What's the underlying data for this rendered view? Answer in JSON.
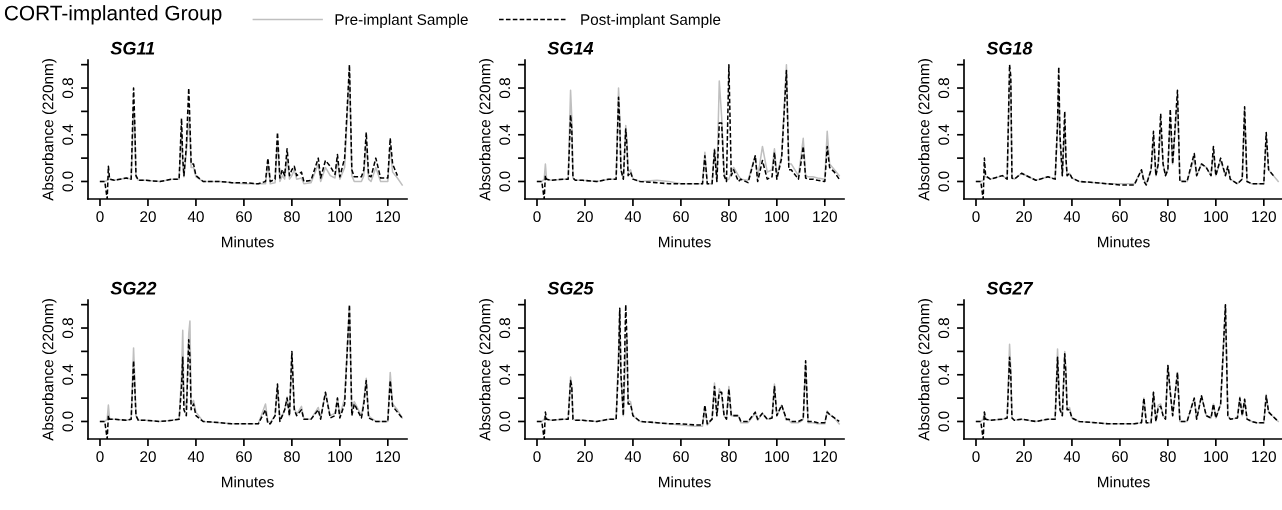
{
  "chart_data": [
    {
      "type": "line",
      "title": "SG11",
      "xlabel": "Minutes",
      "ylabel": "Absorbance (220nm)",
      "annotations": [
        "CORT-implanted Group"
      ],
      "legend": "top",
      "x": [
        0,
        2,
        3,
        3.5,
        4,
        6,
        11,
        13,
        14,
        14.5,
        15,
        16,
        19,
        25,
        30,
        33,
        34,
        34.5,
        35,
        36,
        37,
        37.5,
        38,
        39,
        40,
        43,
        50,
        55,
        60,
        66,
        69,
        70,
        71,
        73,
        74,
        75,
        76,
        77,
        78,
        79,
        80,
        81,
        82,
        84,
        85,
        88,
        91,
        92,
        94,
        96,
        98,
        99,
        100,
        102,
        104,
        105,
        106,
        109,
        110,
        111,
        112,
        113,
        115,
        117,
        120,
        121,
        122,
        124,
        126
      ],
      "series": [
        {
          "name": "Pre-implant Sample",
          "color": "#bfbfbf",
          "line_style": "solid",
          "values": [
            0,
            0,
            0.01,
            0.02,
            0.02,
            0.01,
            0.03,
            0.02,
            0.6,
            0.45,
            0.04,
            0.01,
            0.01,
            0,
            0.02,
            0.02,
            0.45,
            0.15,
            0.04,
            0.25,
            0.55,
            0.4,
            0.12,
            0.12,
            0.04,
            0,
            0,
            -0.01,
            -0.02,
            -0.02,
            -0.02,
            0.15,
            -0.02,
            -0.01,
            0.35,
            0,
            0.05,
            0.02,
            0.2,
            0.02,
            0.05,
            0.1,
            0.02,
            0.03,
            -0.02,
            -0.01,
            0.15,
            0,
            0.12,
            0.05,
            0.03,
            0.18,
            0.02,
            0.12,
            0.95,
            0.05,
            0,
            0,
            0.05,
            0.35,
            0.02,
            0,
            0.12,
            0,
            0,
            0.3,
            0.08,
            0.03,
            -0.03
          ]
        },
        {
          "name": "Post-implant Sample",
          "color": "#000000",
          "line_style": "dashed",
          "values": [
            0,
            0,
            -0.15,
            0.13,
            0.02,
            0.01,
            0.03,
            0.02,
            0.8,
            0.5,
            0.05,
            0.01,
            0.01,
            0,
            0.02,
            0.02,
            0.54,
            0.2,
            0.05,
            0.3,
            0.8,
            0.5,
            0.15,
            0.15,
            0.05,
            0,
            0,
            -0.01,
            -0.01,
            -0.02,
            0,
            0.2,
            0,
            0.02,
            0.42,
            0.03,
            0.1,
            0.05,
            0.28,
            0.05,
            0.1,
            0.13,
            0.05,
            0.08,
            0,
            0.01,
            0.2,
            0.03,
            0.18,
            0.13,
            0.06,
            0.23,
            0.04,
            0.2,
            1.0,
            0.1,
            0.04,
            0.04,
            0.1,
            0.42,
            0.05,
            0.04,
            0.2,
            0.03,
            0.03,
            0.37,
            0.15,
            0.05,
            null
          ]
        }
      ],
      "xlim": [
        -5,
        128
      ],
      "ylim": [
        -0.15,
        1.04
      ],
      "xticks": [
        0,
        20,
        40,
        60,
        80,
        100,
        120
      ],
      "yticks": [
        {
          "value": 0,
          "label": "0.0"
        },
        {
          "value": 0.2,
          "label": null
        },
        {
          "value": 0.4,
          "label": "0.4"
        },
        {
          "value": 0.6,
          "label": null
        },
        {
          "value": 0.8,
          "label": "0.8"
        },
        {
          "value": 1.0,
          "label": null
        }
      ]
    },
    {
      "type": "line",
      "title": "SG14",
      "xlabel": "Minutes",
      "ylabel": "Absorbance (220nm)",
      "x": [
        0,
        2,
        3,
        3.5,
        4,
        6,
        11,
        13,
        14,
        14.5,
        15,
        16,
        19,
        25,
        30,
        33,
        34,
        34.5,
        35,
        36,
        37,
        37.5,
        38,
        39,
        40,
        43,
        50,
        55,
        60,
        66,
        69,
        70,
        71,
        73,
        74,
        75,
        76,
        77,
        78,
        79,
        80,
        81,
        82,
        84,
        85,
        88,
        91,
        92,
        94,
        96,
        98,
        99,
        100,
        102,
        104,
        105,
        106,
        109,
        110,
        111,
        112,
        113,
        115,
        117,
        120,
        121,
        122,
        124,
        126
      ],
      "series": [
        {
          "color": "#bfbfbf",
          "line_style": "solid",
          "values": [
            0,
            0,
            0.02,
            0.15,
            0.02,
            0.01,
            0.02,
            0.02,
            0.78,
            0.55,
            0.03,
            0.01,
            0.01,
            0,
            0.02,
            0.02,
            0.8,
            0.55,
            0.1,
            0.02,
            0.48,
            0.35,
            0.08,
            0.1,
            0.02,
            0,
            0.01,
            0,
            -0.02,
            -0.02,
            -0.02,
            0.25,
            -0.02,
            -0.02,
            0.28,
            0,
            0.86,
            0.55,
            0.08,
            0.01,
            0.02,
            0.08,
            0.12,
            0.05,
            0.02,
            0.01,
            0.22,
            0.03,
            0.3,
            0.08,
            0.1,
            0.28,
            0.05,
            0.22,
            1.0,
            0.15,
            0.15,
            0.05,
            0.2,
            0.37,
            0.05,
            0.04,
            0.04,
            0.03,
            0.02,
            0.43,
            0.15,
            0.1,
            0.05
          ]
        },
        {
          "color": "#000000",
          "line_style": "dashed",
          "values": [
            0,
            0,
            -0.15,
            0.05,
            0.02,
            0.01,
            0.02,
            0.02,
            0.57,
            0.45,
            0.03,
            0.01,
            0.01,
            0,
            0.02,
            0.02,
            0.72,
            0.5,
            0.1,
            0.02,
            0.45,
            0.3,
            0.05,
            0.08,
            0.02,
            0,
            -0.01,
            -0.02,
            -0.02,
            -0.02,
            -0.02,
            0.22,
            -0.02,
            -0.02,
            0.27,
            0,
            0.5,
            0.5,
            0.05,
            0,
            1.0,
            0.05,
            0.1,
            0,
            0.02,
            -0.01,
            0.22,
            0,
            0.18,
            0.02,
            0.04,
            0.25,
            0.02,
            0.2,
            0.95,
            0.1,
            0.1,
            0.02,
            0.15,
            0.3,
            0.03,
            0.02,
            0.02,
            0.01,
            0,
            0.3,
            0.12,
            0.08,
            0.02
          ]
        }
      ],
      "xlim": [
        -5,
        128
      ],
      "ylim": [
        -0.15,
        1.04
      ],
      "xticks": [
        0,
        20,
        40,
        60,
        80,
        100,
        120
      ],
      "yticks": [
        {
          "value": 0,
          "label": "0.0"
        },
        {
          "value": 0.2,
          "label": null
        },
        {
          "value": 0.4,
          "label": "0.4"
        },
        {
          "value": 0.6,
          "label": null
        },
        {
          "value": 0.8,
          "label": "0.8"
        },
        {
          "value": 1.0,
          "label": null
        }
      ]
    },
    {
      "type": "line",
      "title": "SG18",
      "xlabel": "Minutes",
      "ylabel": "Absorbance (220nm)",
      "x": [
        0,
        2,
        3,
        3.5,
        4,
        6,
        11,
        13,
        14,
        14.5,
        15,
        16,
        19,
        25,
        30,
        33,
        34,
        34.5,
        35,
        36,
        37,
        37.5,
        38,
        39,
        40,
        43,
        50,
        55,
        60,
        66,
        69,
        70,
        71,
        73,
        74,
        75,
        76,
        77,
        78,
        79,
        80,
        81,
        82,
        84,
        85,
        88,
        91,
        92,
        94,
        96,
        98,
        99,
        100,
        102,
        104,
        105,
        106,
        109,
        110,
        111,
        112,
        113,
        115,
        117,
        120,
        121,
        122,
        124,
        126
      ],
      "series": [
        {
          "color": "#bfbfbf",
          "line_style": "solid",
          "values": [
            0,
            0,
            0.01,
            0.05,
            0.04,
            0.02,
            0.05,
            0.02,
            0.9,
            0.85,
            0.03,
            0.02,
            0.07,
            0.01,
            0.04,
            0.02,
            0.45,
            0.85,
            0.35,
            0.05,
            0.5,
            0.18,
            0.05,
            0.07,
            0.03,
            0,
            -0.01,
            -0.02,
            -0.02,
            -0.02,
            0.1,
            0.02,
            -0.02,
            0.1,
            0.35,
            0.05,
            0.15,
            0.45,
            0.15,
            0.05,
            0.1,
            0.55,
            0.15,
            0.7,
            0.01,
            0,
            0.2,
            0.05,
            0.15,
            0.12,
            0.05,
            0.25,
            0.05,
            0.18,
            0.05,
            0.12,
            0.02,
            -0.02,
            0,
            0.02,
            0.6,
            0,
            -0.02,
            -0.02,
            -0.02,
            0.38,
            0.1,
            0.05,
            0
          ]
        },
        {
          "color": "#000000",
          "line_style": "dashed",
          "values": [
            0,
            0,
            -0.15,
            0.2,
            0.05,
            0.02,
            0.05,
            0.02,
            1.0,
            0.9,
            0.03,
            0.02,
            0.07,
            0.01,
            0.04,
            0.02,
            0.5,
            0.98,
            0.4,
            0.05,
            0.6,
            0.2,
            0.05,
            0.07,
            0.03,
            0,
            -0.01,
            -0.02,
            -0.03,
            -0.03,
            0.1,
            0,
            -0.03,
            0.1,
            0.43,
            0.05,
            0.15,
            0.58,
            0.15,
            0.05,
            0.1,
            0.62,
            0.15,
            0.78,
            0,
            0,
            0.24,
            0.05,
            0.15,
            0.12,
            0.05,
            0.3,
            0.05,
            0.2,
            0.05,
            0.13,
            0.02,
            -0.02,
            0,
            0.02,
            0.64,
            0,
            -0.02,
            -0.02,
            -0.02,
            0.42,
            0.1,
            0.05,
            null
          ]
        }
      ],
      "xlim": [
        -5,
        128
      ],
      "ylim": [
        -0.15,
        1.04
      ],
      "xticks": [
        0,
        20,
        40,
        60,
        80,
        100,
        120
      ],
      "yticks": [
        {
          "value": 0,
          "label": "0.0"
        },
        {
          "value": 0.2,
          "label": null
        },
        {
          "value": 0.4,
          "label": "0.4"
        },
        {
          "value": 0.6,
          "label": null
        },
        {
          "value": 0.8,
          "label": "0.8"
        },
        {
          "value": 1.0,
          "label": null
        }
      ]
    },
    {
      "type": "line",
      "title": "SG22",
      "xlabel": "Minutes",
      "ylabel": "Absorbance (220nm)",
      "x": [
        0,
        2,
        3,
        3.5,
        4,
        6,
        11,
        13,
        14,
        14.5,
        15,
        16,
        19,
        25,
        30,
        33,
        34,
        34.5,
        35,
        36,
        37,
        37.5,
        38,
        39,
        40,
        43,
        50,
        55,
        60,
        66,
        69,
        70,
        71,
        73,
        74,
        75,
        76,
        77,
        78,
        79,
        80,
        81,
        82,
        84,
        85,
        88,
        91,
        92,
        94,
        96,
        98,
        99,
        100,
        102,
        104,
        105,
        106,
        109,
        110,
        111,
        112,
        113,
        115,
        117,
        120,
        121,
        122,
        124,
        126
      ],
      "series": [
        {
          "color": "#bfbfbf",
          "line_style": "solid",
          "values": [
            0,
            0,
            0.02,
            0.14,
            0.02,
            0.02,
            0.01,
            0.02,
            0.63,
            0.36,
            0.05,
            0.01,
            0.01,
            0,
            0.01,
            0.02,
            0.4,
            0.78,
            0.2,
            0.1,
            0.75,
            0.86,
            0.15,
            0.18,
            0.08,
            0,
            -0.01,
            -0.02,
            -0.02,
            -0.02,
            0.15,
            0,
            -0.01,
            0.05,
            0.3,
            0.02,
            0.05,
            0.1,
            0.21,
            0.05,
            0.58,
            0.12,
            0.06,
            0.13,
            0.02,
            0.02,
            0.12,
            0.03,
            0.25,
            0.05,
            0.07,
            0.2,
            0.05,
            0.2,
            0.98,
            0.08,
            0.17,
            0.05,
            0.18,
            0.37,
            0.05,
            0.03,
            0,
            0,
            0,
            0.42,
            0.15,
            0.1,
            0.03
          ]
        },
        {
          "color": "#000000",
          "line_style": "dashed",
          "values": [
            0,
            0,
            -0.15,
            0.05,
            0.02,
            0.02,
            0.01,
            0.02,
            0.52,
            0.3,
            0.05,
            0.01,
            0.01,
            0,
            0.01,
            0.02,
            0.3,
            0.55,
            0.1,
            0.05,
            0.7,
            0.55,
            0.1,
            0.15,
            0.05,
            0,
            -0.01,
            -0.02,
            -0.02,
            -0.02,
            0.1,
            -0.02,
            -0.02,
            0.05,
            0.32,
            0,
            0.05,
            0.1,
            0.2,
            0.05,
            0.6,
            0.1,
            0.05,
            0.1,
            0.02,
            0.02,
            0.1,
            0.02,
            0.25,
            0.03,
            0.05,
            0.2,
            0.03,
            0.15,
            1.0,
            0.05,
            0.15,
            0.03,
            0.15,
            0.35,
            0.03,
            0.02,
            0,
            0,
            0,
            0.35,
            0.13,
            0.08,
            0.03
          ]
        }
      ],
      "xlim": [
        -5,
        128
      ],
      "ylim": [
        -0.15,
        1.04
      ],
      "xticks": [
        0,
        20,
        40,
        60,
        80,
        100,
        120
      ],
      "yticks": [
        {
          "value": 0,
          "label": "0.0"
        },
        {
          "value": 0.2,
          "label": null
        },
        {
          "value": 0.4,
          "label": "0.4"
        },
        {
          "value": 0.6,
          "label": null
        },
        {
          "value": 0.8,
          "label": "0.8"
        },
        {
          "value": 1.0,
          "label": null
        }
      ]
    },
    {
      "type": "line",
      "title": "SG25",
      "xlabel": "Minutes",
      "ylabel": "Absorbance (220nm)",
      "x": [
        0,
        2,
        3,
        3.5,
        4,
        6,
        11,
        13,
        14,
        14.5,
        15,
        16,
        19,
        25,
        30,
        33,
        34,
        34.5,
        35,
        36,
        37,
        37.5,
        38,
        39,
        40,
        43,
        50,
        55,
        60,
        66,
        69,
        70,
        71,
        73,
        74,
        75,
        76,
        77,
        78,
        79,
        80,
        81,
        82,
        84,
        85,
        88,
        91,
        92,
        94,
        96,
        98,
        99,
        100,
        102,
        104,
        105,
        106,
        109,
        110,
        111,
        112,
        113,
        115,
        117,
        120,
        121,
        122,
        124,
        126
      ],
      "series": [
        {
          "color": "#bfbfbf",
          "line_style": "solid",
          "values": [
            0,
            0,
            0.02,
            0.05,
            0.02,
            0.01,
            0.02,
            0.02,
            0.38,
            0.3,
            0.02,
            0.01,
            0.01,
            0,
            0.02,
            0.02,
            0.6,
            0.95,
            0.4,
            0.05,
            0.6,
            0.72,
            0.18,
            0.17,
            0.05,
            0,
            -0.01,
            -0.02,
            -0.03,
            -0.04,
            -0.04,
            0.12,
            -0.03,
            0.02,
            0.33,
            0.05,
            0.28,
            0.22,
            0.05,
            0.02,
            0.3,
            0.05,
            0.05,
            0.05,
            -0.01,
            -0.01,
            0.07,
            0.01,
            0.07,
            0.02,
            0.03,
            0.32,
            0.05,
            0.14,
            0.01,
            0.01,
            -0.01,
            -0.01,
            0,
            0.02,
            0.5,
            -0.01,
            -0.01,
            -0.02,
            -0.02,
            0.09,
            0.06,
            0.03,
            -0.02
          ]
        },
        {
          "color": "#000000",
          "line_style": "dashed",
          "values": [
            0,
            0,
            -0.15,
            0.08,
            0.02,
            0.01,
            0.02,
            0.02,
            0.35,
            0.3,
            0.02,
            0.01,
            0.01,
            0,
            0.02,
            0.02,
            0.5,
            0.97,
            0.4,
            0.05,
            1.0,
            0.7,
            0.15,
            0.15,
            0.05,
            0,
            -0.01,
            -0.02,
            -0.02,
            -0.03,
            -0.03,
            0.14,
            -0.02,
            0.02,
            0.3,
            0.05,
            0.25,
            0.25,
            0.05,
            0.02,
            0.28,
            0.05,
            0.05,
            0.05,
            0,
            0,
            0.08,
            0.02,
            0.07,
            0.02,
            0.03,
            0.3,
            0.05,
            0.14,
            0.02,
            0.02,
            0,
            0,
            0.01,
            0.02,
            0.52,
            0,
            0,
            -0.01,
            -0.01,
            0.08,
            0.06,
            0.03,
            0
          ]
        }
      ],
      "xlim": [
        -5,
        128
      ],
      "ylim": [
        -0.15,
        1.04
      ],
      "xticks": [
        0,
        20,
        40,
        60,
        80,
        100,
        120
      ],
      "yticks": [
        {
          "value": 0,
          "label": "0.0"
        },
        {
          "value": 0.2,
          "label": null
        },
        {
          "value": 0.4,
          "label": "0.4"
        },
        {
          "value": 0.6,
          "label": null
        },
        {
          "value": 0.8,
          "label": "0.8"
        },
        {
          "value": 1.0,
          "label": null
        }
      ]
    },
    {
      "type": "line",
      "title": "SG27",
      "xlabel": "Minutes",
      "ylabel": "Absorbance (220nm)",
      "x": [
        0,
        2,
        3,
        3.5,
        4,
        6,
        11,
        13,
        14,
        14.5,
        15,
        16,
        19,
        25,
        30,
        33,
        34,
        34.5,
        35,
        36,
        37,
        37.5,
        38,
        39,
        40,
        43,
        50,
        55,
        60,
        66,
        69,
        70,
        71,
        73,
        74,
        75,
        76,
        77,
        78,
        79,
        80,
        81,
        82,
        84,
        85,
        88,
        91,
        92,
        94,
        96,
        98,
        99,
        100,
        102,
        104,
        105,
        106,
        109,
        110,
        111,
        112,
        113,
        115,
        117,
        120,
        121,
        122,
        124,
        126
      ],
      "series": [
        {
          "color": "#bfbfbf",
          "line_style": "solid",
          "values": [
            0,
            0,
            0.02,
            0.08,
            0.02,
            0.01,
            0.02,
            0.03,
            0.66,
            0.45,
            0.03,
            0.01,
            0.02,
            0,
            0.02,
            0.02,
            0.62,
            0.35,
            0.12,
            0.05,
            0.6,
            0.45,
            0.1,
            0.12,
            0.03,
            0,
            -0.01,
            -0.02,
            -0.02,
            -0.02,
            -0.01,
            0.2,
            -0.01,
            -0.01,
            0.25,
            0,
            0.14,
            0.15,
            0.05,
            0.02,
            0.48,
            0.25,
            0.05,
            0.42,
            0,
            0,
            0.2,
            0.02,
            0.22,
            0.05,
            0.03,
            0.15,
            0.03,
            0.15,
            1.0,
            0.05,
            0.02,
            0.03,
            0.21,
            0.05,
            0.19,
            0.02,
            0,
            -0.01,
            -0.01,
            0.23,
            0.08,
            0.04,
            0
          ]
        },
        {
          "color": "#000000",
          "line_style": "dashed",
          "values": [
            0,
            0,
            -0.15,
            0.08,
            0.02,
            0.01,
            0.02,
            0.03,
            0.55,
            0.4,
            0.03,
            0.01,
            0.02,
            0,
            0.02,
            0.02,
            0.55,
            0.3,
            0.1,
            0.05,
            0.58,
            0.4,
            0.1,
            0.1,
            0.03,
            0,
            -0.01,
            -0.02,
            -0.02,
            -0.02,
            -0.01,
            0.2,
            -0.01,
            -0.01,
            0.25,
            0,
            0.12,
            0.13,
            0.05,
            0.02,
            0.48,
            0.25,
            0.05,
            0.42,
            0,
            0,
            0.2,
            0.02,
            0.22,
            0.05,
            0.03,
            0.15,
            0.03,
            0.15,
            1.0,
            0.05,
            0.02,
            0.03,
            0.2,
            0.05,
            0.19,
            0.02,
            0,
            -0.01,
            -0.01,
            0.22,
            0.08,
            0.04,
            0
          ]
        }
      ],
      "xlim": [
        -5,
        128
      ],
      "ylim": [
        -0.15,
        1.04
      ],
      "xticks": [
        0,
        20,
        40,
        60,
        80,
        100,
        120
      ],
      "yticks": [
        {
          "value": 0,
          "label": "0.0"
        },
        {
          "value": 0.2,
          "label": null
        },
        {
          "value": 0.4,
          "label": "0.4"
        },
        {
          "value": 0.6,
          "label": null
        },
        {
          "value": 0.8,
          "label": "0.8"
        },
        {
          "value": 1.0,
          "label": null
        }
      ]
    }
  ]
}
